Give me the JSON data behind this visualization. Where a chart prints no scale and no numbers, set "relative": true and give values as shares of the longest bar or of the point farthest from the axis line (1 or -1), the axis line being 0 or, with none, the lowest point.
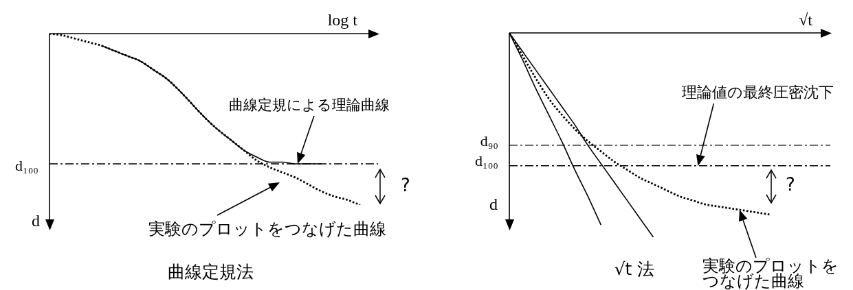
{
  "chart_data": [
    {
      "type": "line",
      "title": "曲線定規法",
      "xlabel": "log t",
      "ylabel": "d",
      "categories": [
        null,
        null,
        null,
        null,
        null,
        null,
        null,
        null,
        null,
        null,
        null,
        null,
        null,
        null,
        null,
        null,
        null,
        null,
        null,
        null,
        null,
        null,
        null,
        null,
        null
      ],
      "relative": true,
      "tick_labels": false,
      "grid": false,
      "legend": false,
      "marker": "none",
      "series": [
        {
          "color": "#000000",
          "line_style": "solid",
          "values": [
            null,
            null,
            null,
            null,
            -0.07,
            -0.1,
            -0.13,
            -0.16,
            -0.21,
            -0.26,
            -0.33,
            -0.41,
            -0.49,
            -0.56,
            -0.62,
            -0.68,
            -0.72,
            -0.75,
            -0.75,
            -0.76,
            -0.76,
            -0.76,
            null,
            null,
            null
          ]
        },
        {
          "color": "#000000",
          "line_style": "dotted",
          "values": [
            0,
            -0.01,
            -0.03,
            -0.05,
            -0.07,
            -0.1,
            -0.13,
            -0.16,
            -0.21,
            -0.26,
            -0.33,
            -0.41,
            -0.49,
            -0.56,
            -0.62,
            -0.68,
            -0.74,
            -0.78,
            -0.81,
            -0.84,
            -0.88,
            -0.92,
            -0.95,
            -0.97,
            -1
          ]
        }
      ],
      "ref_lines": [
        {
          "axis": "y",
          "value": -0.76,
          "label": "d₁₀₀"
        }
      ],
      "annotations": [
        "曲線定規による理論曲線",
        "実験のプロットをつなげた曲線",
        "?"
      ]
    },
    {
      "type": "line",
      "title": "√t 法",
      "xlabel": "√t",
      "ylabel": "d",
      "categories": [
        null,
        null,
        null,
        null,
        null,
        null,
        null,
        null,
        null,
        null,
        null,
        null,
        null,
        null,
        null,
        null,
        null,
        null,
        null,
        null,
        null
      ],
      "relative": true,
      "tick_labels": false,
      "grid": false,
      "legend": false,
      "marker": "none",
      "series": [
        {
          "color": "#000000",
          "line_style": "solid",
          "values": [
            0,
            -0.13,
            -0.27,
            -0.4,
            -0.53,
            -0.67,
            -0.8,
            -0.94,
            null,
            null,
            null,
            null,
            null,
            null,
            null,
            null,
            null,
            null,
            null,
            null,
            null
          ]
        },
        {
          "color": "#000000",
          "line_style": "solid",
          "values": [
            0,
            -0.09,
            -0.18,
            -0.27,
            -0.36,
            -0.45,
            -0.55,
            -0.64,
            -0.73,
            -0.82,
            -0.91,
            -1,
            null,
            null,
            null,
            null,
            null,
            null,
            null,
            null,
            null
          ]
        },
        {
          "color": "#000000",
          "line_style": "dotted",
          "values": [
            0,
            -0.11,
            -0.22,
            -0.32,
            -0.4,
            -0.47,
            -0.53,
            -0.58,
            -0.63,
            -0.67,
            -0.71,
            -0.74,
            -0.77,
            -0.8,
            -0.82,
            -0.84,
            -0.85,
            -0.86,
            -0.87,
            -0.88,
            -0.89
          ]
        }
      ],
      "ref_lines": [
        {
          "axis": "y",
          "value": -0.55,
          "label": "d₉₀"
        },
        {
          "axis": "y",
          "value": -0.65,
          "label": "d₁₀₀"
        }
      ],
      "annotations": [
        "理論値の最終圧密沈下",
        "実験のプロットをつなげた曲線",
        "?"
      ]
    }
  ]
}
